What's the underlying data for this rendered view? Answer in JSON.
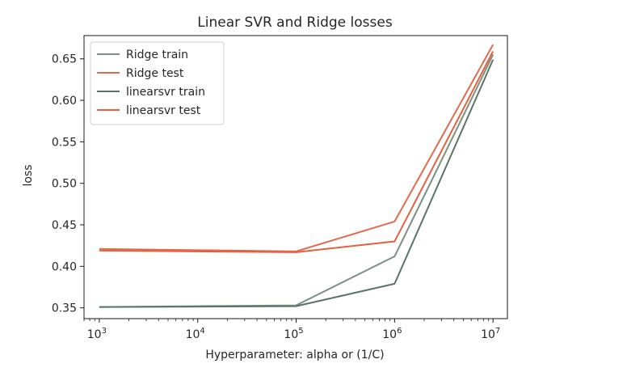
{
  "chart_data": {
    "type": "line",
    "title": "Linear SVR and Ridge losses",
    "xlabel": "Hyperparameter: alpha or (1/C)",
    "ylabel": "loss",
    "x_scale": "log",
    "x": [
      1000,
      100000,
      1000000,
      10000000
    ],
    "x_ticks": [
      {
        "value": 1000,
        "base": "10",
        "exp": "3"
      },
      {
        "value": 10000,
        "base": "10",
        "exp": "4"
      },
      {
        "value": 100000,
        "base": "10",
        "exp": "5"
      },
      {
        "value": 1000000,
        "base": "10",
        "exp": "6"
      },
      {
        "value": 10000000,
        "base": "10",
        "exp": "7"
      }
    ],
    "xlim": [
      700,
      14000000
    ],
    "ylim": [
      0.337,
      0.678
    ],
    "y_ticks": [
      "0.35",
      "0.40",
      "0.45",
      "0.50",
      "0.55",
      "0.60",
      "0.65"
    ],
    "grid": false,
    "legend_position": "top-left",
    "series": [
      {
        "name": "Ridge train",
        "color": "#7a9183",
        "values": [
          0.351,
          0.353,
          0.412,
          0.655
        ]
      },
      {
        "name": "Ridge test",
        "color": "#e06b4f",
        "values": [
          0.421,
          0.418,
          0.454,
          0.667
        ]
      },
      {
        "name": "linearsvr train",
        "color": "#5a7466",
        "values": [
          0.351,
          0.352,
          0.379,
          0.649
        ]
      },
      {
        "name": "linearsvr test",
        "color": "#e4603f",
        "values": [
          0.419,
          0.417,
          0.43,
          0.659
        ]
      }
    ]
  }
}
